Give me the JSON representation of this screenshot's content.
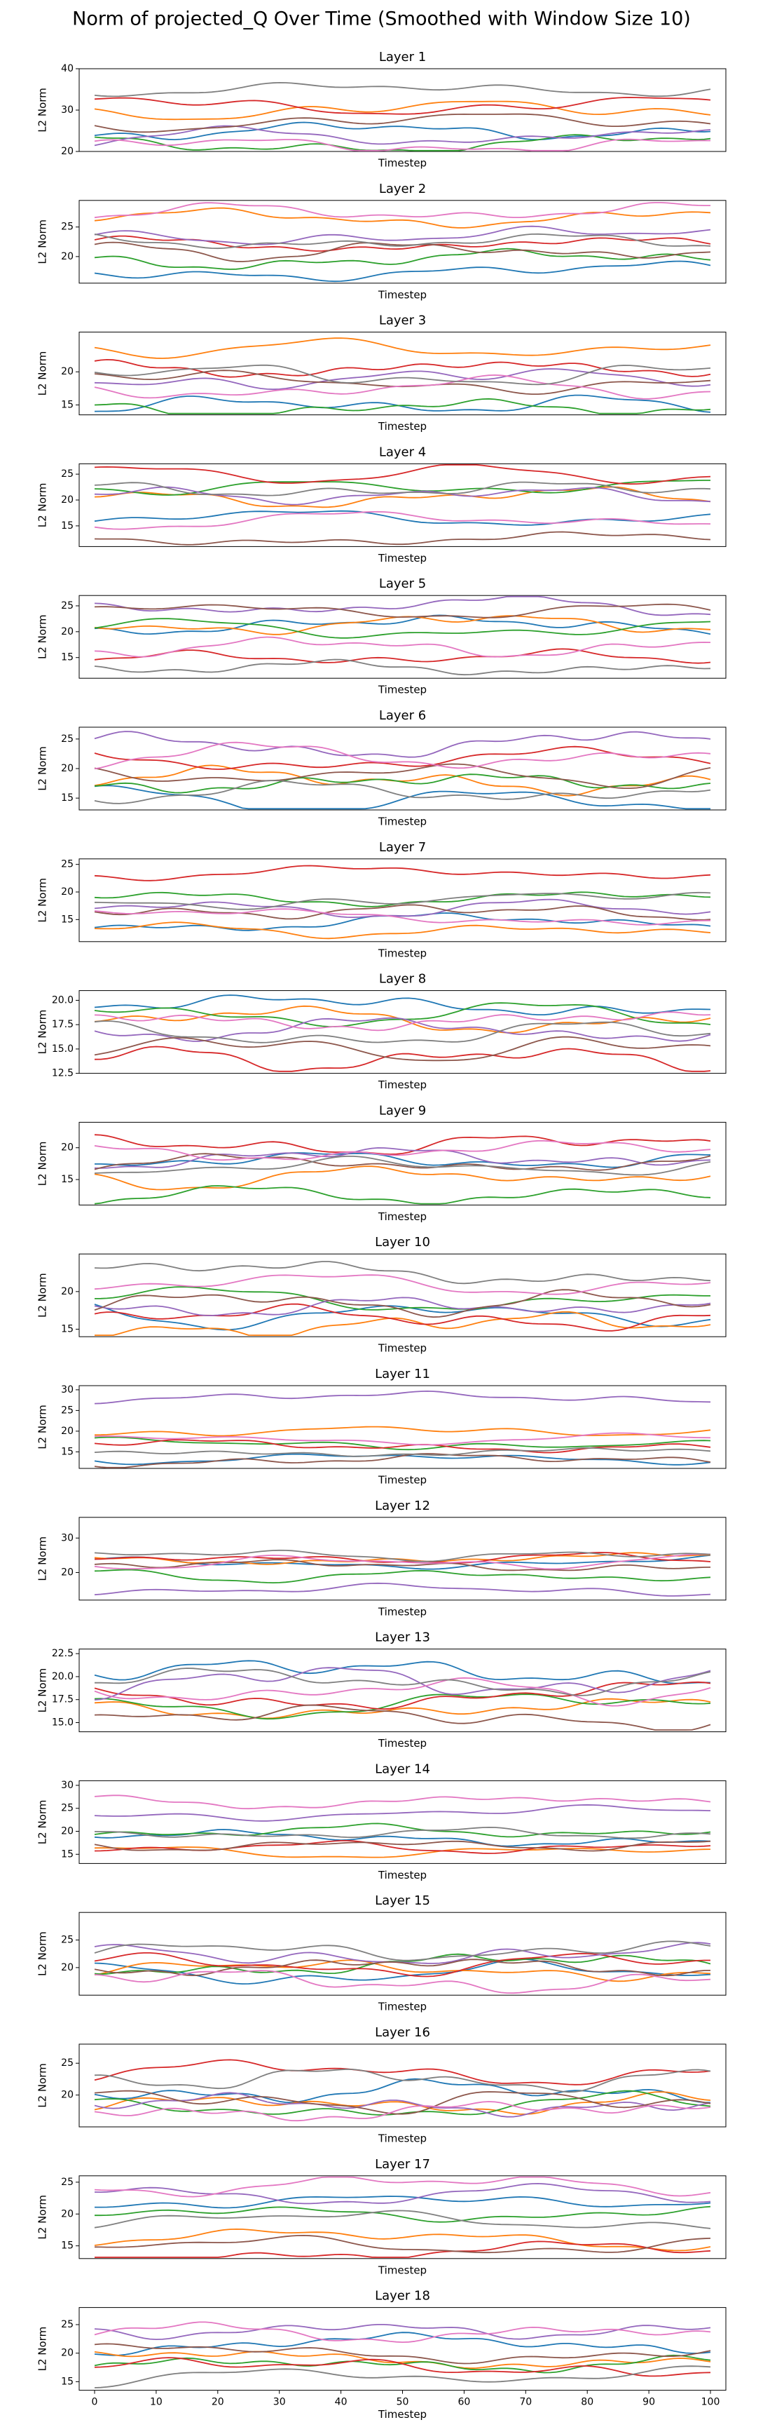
{
  "figure": {
    "title": "Norm of projected_Q Over Time (Smoothed with Window Size 10)"
  },
  "colors": [
    "#1f77b4",
    "#ff7f0e",
    "#2ca02c",
    "#d62728",
    "#9467bd",
    "#8c564b",
    "#e377c2",
    "#7f7f7f"
  ],
  "chart_data": [
    {
      "type": "line",
      "title": "Layer 1",
      "xlabel": "Timestep",
      "ylabel": "L2 Norm",
      "xlim": [
        0,
        100
      ],
      "ylim": [
        20,
        40
      ],
      "yticks": [
        "20",
        "30",
        "40"
      ],
      "xticks": [],
      "levels": [
        25,
        30,
        22,
        31,
        23.5,
        27,
        21.5,
        35
      ],
      "amp": 1.2
    },
    {
      "type": "line",
      "title": "Layer 2",
      "xlabel": "Timestep",
      "ylabel": "L2 Norm",
      "xlim": [
        0,
        100
      ],
      "ylim": [
        15.5,
        29.5
      ],
      "yticks": [
        "20",
        "25"
      ],
      "xticks": [],
      "levels": [
        17.5,
        26.5,
        19.5,
        22,
        23.5,
        21,
        27.5,
        22.5
      ],
      "amp": 0.8
    },
    {
      "type": "line",
      "title": "Layer 3",
      "xlabel": "Timestep",
      "ylabel": "L2 Norm",
      "xlim": [
        0,
        100
      ],
      "ylim": [
        13.5,
        26
      ],
      "yticks": [
        "15",
        "20"
      ],
      "xticks": [],
      "levels": [
        15,
        23.5,
        14.5,
        20.5,
        19,
        18.5,
        17.5,
        19.5
      ],
      "amp": 0.9
    },
    {
      "type": "line",
      "title": "Layer 4",
      "xlabel": "Timestep",
      "ylabel": "L2 Norm",
      "xlim": [
        0,
        100
      ],
      "ylim": [
        11,
        27
      ],
      "yticks": [
        "15",
        "20",
        "25"
      ],
      "xticks": [],
      "levels": [
        16.5,
        20.5,
        22.5,
        25,
        21,
        12.5,
        16,
        22
      ],
      "amp": 0.9
    },
    {
      "type": "line",
      "title": "Layer 5",
      "xlabel": "Timestep",
      "ylabel": "L2 Norm",
      "xlim": [
        0,
        100
      ],
      "ylim": [
        11,
        27
      ],
      "yticks": [
        "15",
        "20",
        "25"
      ],
      "xticks": [],
      "levels": [
        21,
        21.5,
        20.5,
        15,
        25,
        24,
        17,
        13
      ],
      "amp": 1.0
    },
    {
      "type": "line",
      "title": "Layer 6",
      "xlabel": "Timestep",
      "ylabel": "L2 Norm",
      "xlim": [
        0,
        100
      ],
      "ylim": [
        13,
        27
      ],
      "yticks": [
        "15",
        "20",
        "25"
      ],
      "xticks": [],
      "levels": [
        14.5,
        18,
        17.5,
        21.5,
        24,
        19,
        22,
        16
      ],
      "amp": 1.2
    },
    {
      "type": "line",
      "title": "Layer 7",
      "xlabel": "Timestep",
      "ylabel": "L2 Norm",
      "xlim": [
        0,
        100
      ],
      "ylim": [
        11,
        26
      ],
      "yticks": [
        "15",
        "20",
        "25"
      ],
      "xticks": [],
      "levels": [
        14.5,
        13,
        19,
        23.5,
        17,
        16.5,
        15.5,
        18.5
      ],
      "amp": 0.8
    },
    {
      "type": "line",
      "title": "Layer 8",
      "xlabel": "Timestep",
      "ylabel": "L2 Norm",
      "xlim": [
        0,
        100
      ],
      "ylim": [
        12.5,
        21
      ],
      "yticks": [
        "12.5",
        "15.0",
        "17.5",
        "20.0"
      ],
      "xticks": [],
      "levels": [
        19.5,
        18,
        18.5,
        14,
        17,
        15,
        18,
        16.5
      ],
      "amp": 0.7
    },
    {
      "type": "line",
      "title": "Layer 9",
      "xlabel": "Timestep",
      "ylabel": "L2 Norm",
      "xlim": [
        0,
        100
      ],
      "ylim": [
        11,
        24
      ],
      "yticks": [
        "15",
        "20"
      ],
      "xticks": [],
      "levels": [
        18,
        15.5,
        12.5,
        20.5,
        18.5,
        17.5,
        19.5,
        17
      ],
      "amp": 0.9
    },
    {
      "type": "line",
      "title": "Layer 10",
      "xlabel": "Timestep",
      "ylabel": "L2 Norm",
      "xlim": [
        0,
        100
      ],
      "ylim": [
        14,
        25
      ],
      "yticks": [
        "15",
        "20"
      ],
      "xticks": [],
      "levels": [
        17,
        15.5,
        19,
        16.5,
        18,
        18.5,
        21,
        22.5
      ],
      "amp": 0.9
    },
    {
      "type": "line",
      "title": "Layer 11",
      "xlabel": "Timestep",
      "ylabel": "L2 Norm",
      "xlim": [
        0,
        100
      ],
      "ylim": [
        11,
        31
      ],
      "yticks": [
        "15",
        "20",
        "25",
        "30"
      ],
      "xticks": [],
      "levels": [
        13.5,
        20,
        17,
        16.5,
        28,
        13,
        18,
        15
      ],
      "amp": 0.8
    },
    {
      "type": "line",
      "title": "Layer 12",
      "xlabel": "Timestep",
      "ylabel": "L2 Norm",
      "xlim": [
        0,
        100
      ],
      "ylim": [
        12,
        36
      ],
      "yticks": [
        "20",
        "30"
      ],
      "xticks": [],
      "levels": [
        23,
        24,
        19,
        24,
        15,
        22,
        23,
        25
      ],
      "amp": 1.0
    },
    {
      "type": "line",
      "title": "Layer 13",
      "xlabel": "Timestep",
      "ylabel": "L2 Norm",
      "xlim": [
        0,
        100
      ],
      "ylim": [
        14,
        23
      ],
      "yticks": [
        "15.0",
        "17.5",
        "20.0",
        "22.5"
      ],
      "xticks": [],
      "levels": [
        20.5,
        16.5,
        17,
        18,
        19.5,
        15.5,
        18.5,
        19.5
      ],
      "amp": 0.8
    },
    {
      "type": "line",
      "title": "Layer 14",
      "xlabel": "Timestep",
      "ylabel": "L2 Norm",
      "xlim": [
        0,
        100
      ],
      "ylim": [
        13,
        31
      ],
      "yticks": [
        "15",
        "20",
        "25",
        "30"
      ],
      "xticks": [],
      "levels": [
        18.5,
        15.5,
        20,
        16.5,
        24,
        17,
        26.5,
        19.5
      ],
      "amp": 0.8
    },
    {
      "type": "line",
      "title": "Layer 15",
      "xlabel": "Timestep",
      "ylabel": "L2 Norm",
      "xlim": [
        0,
        100
      ],
      "ylim": [
        15,
        30
      ],
      "yticks": [
        "20",
        "25"
      ],
      "xticks": [],
      "levels": [
        19,
        19.5,
        20.5,
        20.5,
        22.5,
        20,
        17.5,
        23
      ],
      "amp": 1.1
    },
    {
      "type": "line",
      "title": "Layer 16",
      "xlabel": "Timestep",
      "ylabel": "L2 Norm",
      "xlim": [
        0,
        100
      ],
      "ylim": [
        15,
        28
      ],
      "yticks": [
        "20",
        "25"
      ],
      "xticks": [],
      "levels": [
        20.5,
        18.5,
        18,
        23.5,
        18.5,
        19,
        17.5,
        22.5
      ],
      "amp": 1.1
    },
    {
      "type": "line",
      "title": "Layer 17",
      "xlabel": "Timestep",
      "ylabel": "L2 Norm",
      "xlim": [
        0,
        100
      ],
      "ylim": [
        13,
        26
      ],
      "yticks": [
        "15",
        "20",
        "25"
      ],
      "xticks": [],
      "levels": [
        22,
        16,
        20,
        14,
        23,
        15,
        24.5,
        19
      ],
      "amp": 0.8
    },
    {
      "type": "line",
      "title": "Layer 18",
      "xlabel": "Timestep",
      "ylabel": "L2 Norm",
      "xlim": [
        0,
        100
      ],
      "ylim": [
        13.5,
        28
      ],
      "yticks": [
        "15",
        "20",
        "25"
      ],
      "xticks": [
        "0",
        "10",
        "20",
        "30",
        "40",
        "50",
        "60",
        "70",
        "80",
        "90",
        "100"
      ],
      "levels": [
        21.5,
        19,
        18,
        17.5,
        24,
        20,
        23.5,
        16
      ],
      "amp": 1.0
    }
  ]
}
